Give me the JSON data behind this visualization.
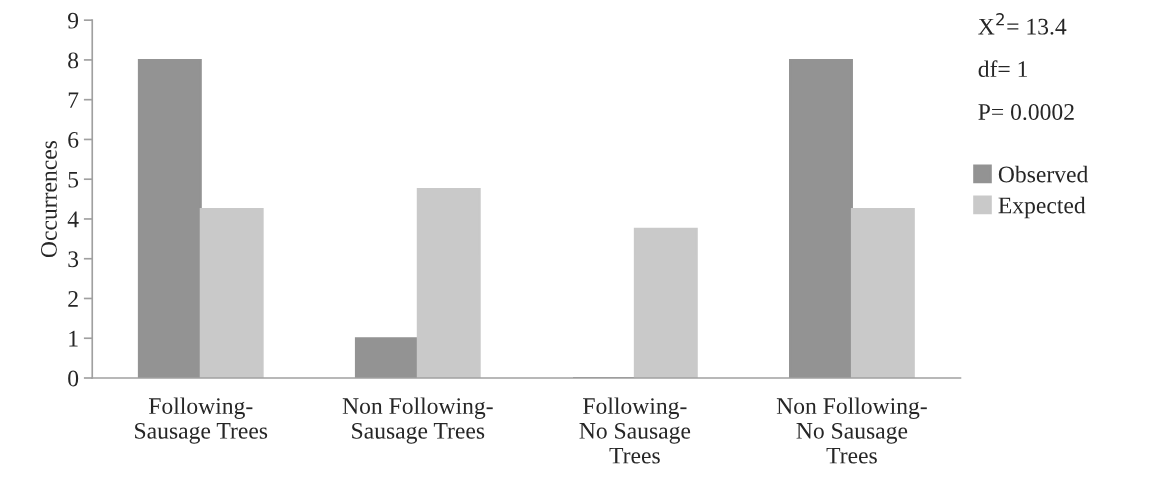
{
  "chart_data": {
    "type": "bar",
    "ylabel": "Occurrences",
    "categories": [
      "Following-\nSausage Trees",
      "Non Following-\nSausage Trees",
      "Following-\nNo Sausage\nTrees",
      "Non Following-\nNo Sausage\nTrees"
    ],
    "series": [
      {
        "name": "Observed",
        "color": "#939393",
        "values": [
          8,
          1,
          0,
          8
        ]
      },
      {
        "name": "Expected",
        "color": "#c9c9c9",
        "values": [
          4.25,
          4.75,
          3.75,
          4.25
        ]
      }
    ],
    "ylim": [
      0,
      9
    ],
    "yticks": [
      0,
      1,
      2,
      3,
      4,
      5,
      6,
      7,
      8,
      9
    ],
    "annotations": [
      "X$^{2}$= 13.4",
      "df= 1",
      "P= 0.0002"
    ],
    "legend": "right",
    "grid": false
  }
}
